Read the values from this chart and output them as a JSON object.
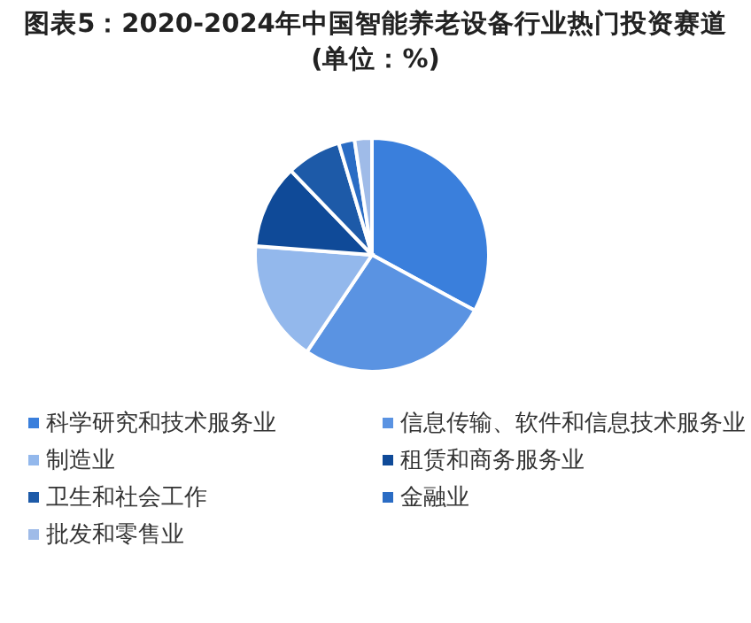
{
  "chart_data": {
    "type": "pie",
    "title": "图表5：2020-2024年中国智能养老设备行业热门投资赛道(单位：%)",
    "categories": [
      "科学研究和技术服务业",
      "信息传输、软件和信息技术服务业",
      "制造业",
      "租赁和商务服务业",
      "卫生和社会工作",
      "金融业",
      "批发和零售业"
    ],
    "values": [
      32.9,
      26.5,
      16.8,
      11.6,
      7.6,
      2.2,
      2.4
    ],
    "colors": [
      "#3a7fdc",
      "#5a93e2",
      "#93b8ec",
      "#0f4a98",
      "#1d5aa8",
      "#2a6cc4",
      "#9fbbe8"
    ],
    "legend": "bottom"
  }
}
